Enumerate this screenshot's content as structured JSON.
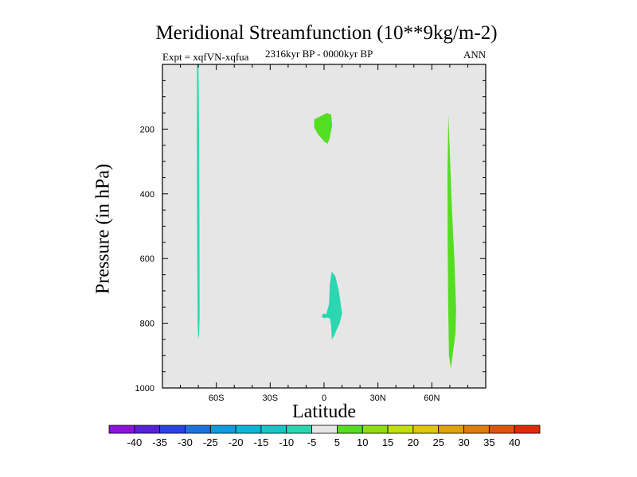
{
  "chart_data": {
    "type": "contour",
    "title": "Meridional Streamfunction (10**9kg/m-2)",
    "subtitle_left": "Expt = xqfVN-xqfua",
    "subtitle_center": "2316kyr BP - 0000kyr BP",
    "subtitle_right": "ANN",
    "xlabel": "Latitude",
    "ylabel": "Pressure (in hPa)",
    "xlim": [
      -90,
      90
    ],
    "ylim": [
      1000,
      0
    ],
    "x_ticks": [
      {
        "value": -60,
        "label": "60S"
      },
      {
        "value": -30,
        "label": "30S"
      },
      {
        "value": 0,
        "label": "0"
      },
      {
        "value": 30,
        "label": "30N"
      },
      {
        "value": 60,
        "label": "60N"
      }
    ],
    "y_ticks": [
      {
        "value": 200,
        "label": "200"
      },
      {
        "value": 400,
        "label": "400"
      },
      {
        "value": 600,
        "label": "600"
      },
      {
        "value": 800,
        "label": "800"
      },
      {
        "value": 1000,
        "label": "1000"
      }
    ],
    "background_color": "#e6e6e6",
    "regions": [
      {
        "name": "negative-cell-southern-high-latitudes",
        "level": "-10 to -5",
        "color": "#2bd6b0",
        "points": [
          [
            -70.7,
            0
          ],
          [
            -69.9,
            0
          ],
          [
            -69.6,
            200
          ],
          [
            -69.4,
            500
          ],
          [
            -69.3,
            780
          ],
          [
            -69.6,
            835
          ],
          [
            -70.1,
            850
          ],
          [
            -70.4,
            790
          ],
          [
            -70.7,
            500
          ],
          [
            -70.8,
            200
          ]
        ]
      },
      {
        "name": "positive-cell-equator-upper",
        "level": "5 to 10",
        "color": "#55dd22",
        "points": [
          [
            -5.5,
            170
          ],
          [
            1.5,
            150
          ],
          [
            4,
            155
          ],
          [
            4.5,
            190
          ],
          [
            3,
            230
          ],
          [
            2,
            245
          ],
          [
            0,
            238
          ],
          [
            -3.5,
            215
          ],
          [
            -5.5,
            195
          ]
        ]
      },
      {
        "name": "negative-cell-equator-lower",
        "level": "-10 to -5",
        "color": "#2bd6b0",
        "points": [
          [
            4.3,
            640
          ],
          [
            6.3,
            655
          ],
          [
            8.2,
            700
          ],
          [
            10,
            770
          ],
          [
            8.7,
            800
          ],
          [
            7,
            820
          ],
          [
            5.5,
            840
          ],
          [
            4.3,
            850
          ],
          [
            3.9,
            805
          ],
          [
            3.2,
            785
          ],
          [
            1.2,
            782
          ],
          [
            0.5,
            785
          ],
          [
            -1.4,
            780
          ],
          [
            -0.5,
            770
          ],
          [
            1.2,
            772
          ],
          [
            2.8,
            740
          ],
          [
            3.2,
            680
          ]
        ]
      },
      {
        "name": "positive-cell-northern-high-latitudes",
        "level": "5 to 10",
        "color": "#55dd22",
        "points": [
          [
            69.2,
            155
          ],
          [
            70,
            270
          ],
          [
            71.2,
            450
          ],
          [
            72.7,
            620
          ],
          [
            73.5,
            760
          ],
          [
            73.2,
            830
          ],
          [
            72,
            880
          ],
          [
            70.6,
            940
          ],
          [
            69.5,
            900
          ],
          [
            69.1,
            750
          ],
          [
            68.8,
            550
          ],
          [
            68.7,
            330
          ]
        ]
      }
    ],
    "colorbar": {
      "labels": [
        "-40",
        "-35",
        "-30",
        "-25",
        "-20",
        "-15",
        "-10",
        "-5",
        "5",
        "10",
        "15",
        "20",
        "25",
        "30",
        "35",
        "40"
      ],
      "colors": [
        "#8d13d9",
        "#5721d6",
        "#2a43e0",
        "#1c73e0",
        "#0f9be0",
        "#0db4d8",
        "#1cc4c8",
        "#2bd6b0",
        "#e6e6e6",
        "#55dd22",
        "#8fde14",
        "#c2e010",
        "#e0c50e",
        "#e0a20c",
        "#e07c0a",
        "#e05408",
        "#e02a05"
      ]
    }
  }
}
